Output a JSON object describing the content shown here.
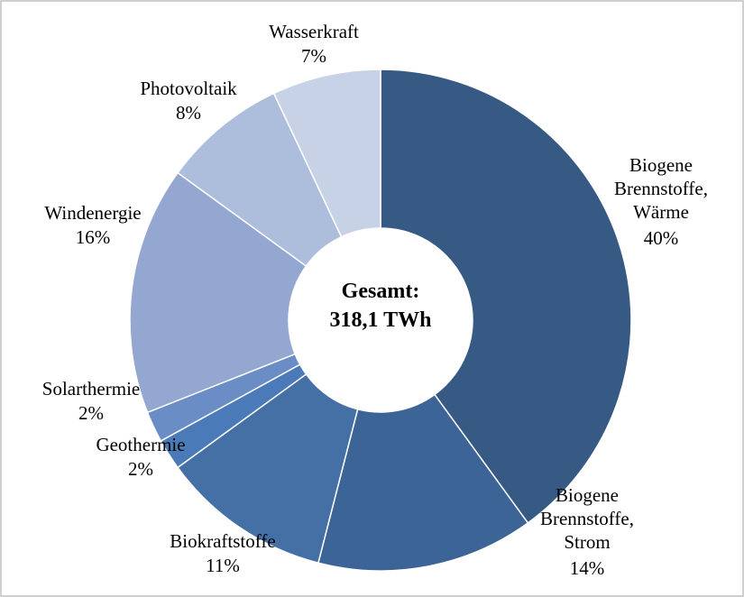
{
  "chart_data": {
    "type": "donut",
    "center_lines": [
      "Gesamt:",
      "318,1 TWh"
    ],
    "categories": [
      "Biogene Brennstoffe, Wärme",
      "Biogene Brennstoffe, Strom",
      "Biokraftstoffe",
      "Geothermie",
      "Solarthermie",
      "Windenergie",
      "Photovoltaik",
      "Wasserkraft"
    ],
    "values": [
      40,
      14,
      11,
      2,
      2,
      16,
      8,
      7
    ],
    "value_labels": [
      "40%",
      "14%",
      "11%",
      "2%",
      "2%",
      "16%",
      "8%",
      "7%"
    ],
    "colors": [
      "#375a84",
      "#3d6496",
      "#4470a6",
      "#4a7ab8",
      "#6a8dc6",
      "#93a7d1",
      "#adbedc",
      "#c8d2e6"
    ]
  }
}
